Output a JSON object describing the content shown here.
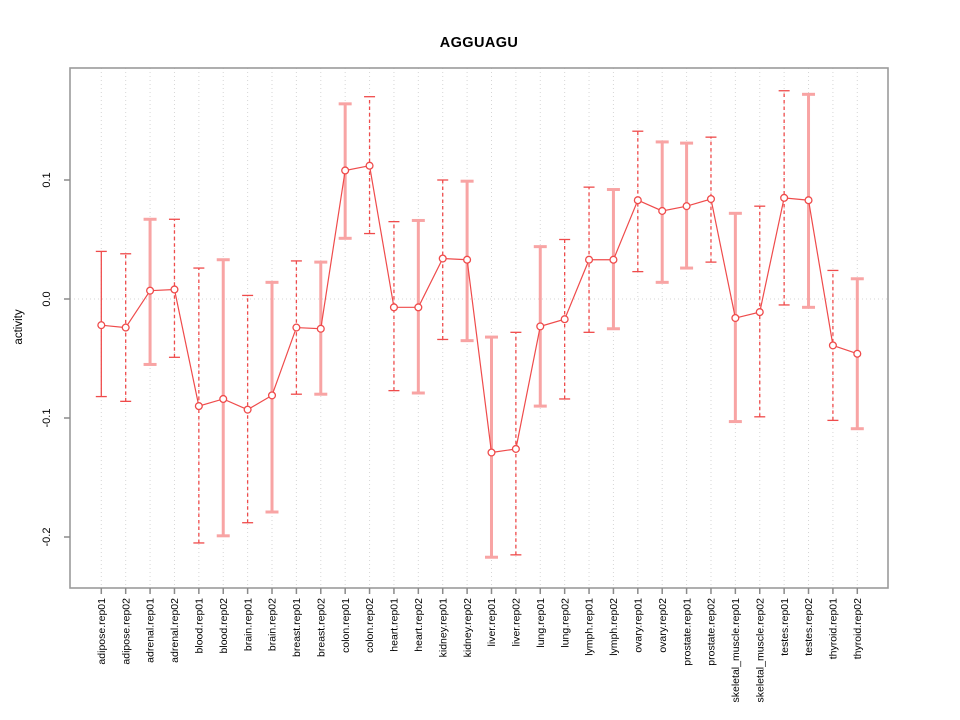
{
  "figure": {
    "background": "#ffffff"
  },
  "chart_data": {
    "type": "line",
    "subtype": "points-with-error-bars",
    "title": "AGGUAGU",
    "xlabel": "",
    "ylabel": "activity",
    "legend": "none",
    "grid": "vertical-dotted-per-category-plus-dotted-zero-line",
    "point_marker": "open-circle",
    "ylim": [
      -0.243,
      0.193
    ],
    "yticks": [
      0.1,
      0.0,
      -0.1,
      -0.2
    ],
    "ytick_labels": [
      "0.1",
      "0.0",
      "-0.1",
      "-0.2"
    ],
    "colors": {
      "line": "#ef4b4b",
      "marker": "#ef4b4b",
      "error_bar_dashed": "#ef4b4b",
      "error_bar_solid": "#f8a4a4",
      "grid": "#d6d6d6",
      "frame": "#9b9b9b",
      "tick": "#8a8a8a",
      "text": "#000000"
    },
    "categories": [
      "adipose.rep01",
      "adipose.rep02",
      "adrenal.rep01",
      "adrenal.rep02",
      "blood.rep01",
      "blood.rep02",
      "brain.rep01",
      "brain.rep02",
      "breast.rep01",
      "breast.rep02",
      "colon.rep01",
      "colon.rep02",
      "heart.rep01",
      "heart.rep02",
      "kidney.rep01",
      "kidney.rep02",
      "liver.rep01",
      "liver.rep02",
      "lung.rep01",
      "lung.rep02",
      "lymph.rep01",
      "lymph.rep02",
      "ovary.rep01",
      "ovary.rep02",
      "prostate.rep01",
      "prostate.rep02",
      "skeletal_muscle.rep01",
      "skeletal_muscle.rep02",
      "testes.rep01",
      "testes.rep02",
      "thyroid.rep01",
      "thyroid.rep02"
    ],
    "points": [
      {
        "label": "adipose.rep01",
        "value": -0.022,
        "lo": -0.082,
        "hi": 0.04,
        "bar_style": "solid-red"
      },
      {
        "label": "adipose.rep02",
        "value": -0.024,
        "lo": -0.086,
        "hi": 0.038,
        "bar_style": "dashed-red"
      },
      {
        "label": "adrenal.rep01",
        "value": 0.007,
        "lo": -0.055,
        "hi": 0.067,
        "bar_style": "solid-pink"
      },
      {
        "label": "adrenal.rep02",
        "value": 0.008,
        "lo": -0.049,
        "hi": 0.067,
        "bar_style": "dashed-red"
      },
      {
        "label": "blood.rep01",
        "value": -0.09,
        "lo": -0.205,
        "hi": 0.026,
        "bar_style": "dashed-red"
      },
      {
        "label": "blood.rep02",
        "value": -0.084,
        "lo": -0.199,
        "hi": 0.033,
        "bar_style": "solid-pink"
      },
      {
        "label": "brain.rep01",
        "value": -0.093,
        "lo": -0.188,
        "hi": 0.003,
        "bar_style": "dashed-red"
      },
      {
        "label": "brain.rep02",
        "value": -0.081,
        "lo": -0.179,
        "hi": 0.014,
        "bar_style": "solid-pink"
      },
      {
        "label": "breast.rep01",
        "value": -0.024,
        "lo": -0.08,
        "hi": 0.032,
        "bar_style": "dashed-red"
      },
      {
        "label": "breast.rep02",
        "value": -0.025,
        "lo": -0.08,
        "hi": 0.031,
        "bar_style": "solid-pink"
      },
      {
        "label": "colon.rep01",
        "value": 0.108,
        "lo": 0.051,
        "hi": 0.164,
        "bar_style": "solid-pink"
      },
      {
        "label": "colon.rep02",
        "value": 0.112,
        "lo": 0.055,
        "hi": 0.17,
        "bar_style": "dashed-red"
      },
      {
        "label": "heart.rep01",
        "value": -0.007,
        "lo": -0.077,
        "hi": 0.065,
        "bar_style": "dashed-red"
      },
      {
        "label": "heart.rep02",
        "value": -0.007,
        "lo": -0.079,
        "hi": 0.066,
        "bar_style": "solid-pink"
      },
      {
        "label": "kidney.rep01",
        "value": 0.034,
        "lo": -0.034,
        "hi": 0.1,
        "bar_style": "dashed-red"
      },
      {
        "label": "kidney.rep02",
        "value": 0.033,
        "lo": -0.035,
        "hi": 0.099,
        "bar_style": "solid-pink"
      },
      {
        "label": "liver.rep01",
        "value": -0.129,
        "lo": -0.217,
        "hi": -0.032,
        "bar_style": "solid-pink"
      },
      {
        "label": "liver.rep02",
        "value": -0.126,
        "lo": -0.215,
        "hi": -0.028,
        "bar_style": "dashed-red"
      },
      {
        "label": "lung.rep01",
        "value": -0.023,
        "lo": -0.09,
        "hi": 0.044,
        "bar_style": "solid-pink"
      },
      {
        "label": "lung.rep02",
        "value": -0.017,
        "lo": -0.084,
        "hi": 0.05,
        "bar_style": "dashed-red"
      },
      {
        "label": "lymph.rep01",
        "value": 0.033,
        "lo": -0.028,
        "hi": 0.094,
        "bar_style": "dashed-red"
      },
      {
        "label": "lymph.rep02",
        "value": 0.033,
        "lo": -0.025,
        "hi": 0.092,
        "bar_style": "solid-pink"
      },
      {
        "label": "ovary.rep01",
        "value": 0.083,
        "lo": 0.023,
        "hi": 0.141,
        "bar_style": "dashed-red"
      },
      {
        "label": "ovary.rep02",
        "value": 0.074,
        "lo": 0.014,
        "hi": 0.132,
        "bar_style": "solid-pink"
      },
      {
        "label": "prostate.rep01",
        "value": 0.078,
        "lo": 0.026,
        "hi": 0.131,
        "bar_style": "solid-pink"
      },
      {
        "label": "prostate.rep02",
        "value": 0.084,
        "lo": 0.031,
        "hi": 0.136,
        "bar_style": "dashed-red"
      },
      {
        "label": "skeletal_muscle.rep01",
        "value": -0.016,
        "lo": -0.103,
        "hi": 0.072,
        "bar_style": "solid-pink"
      },
      {
        "label": "skeletal_muscle.rep02",
        "value": -0.011,
        "lo": -0.099,
        "hi": 0.078,
        "bar_style": "dashed-red"
      },
      {
        "label": "testes.rep01",
        "value": 0.085,
        "lo": -0.005,
        "hi": 0.175,
        "bar_style": "dashed-red"
      },
      {
        "label": "testes.rep02",
        "value": 0.083,
        "lo": -0.007,
        "hi": 0.172,
        "bar_style": "solid-pink"
      },
      {
        "label": "thyroid.rep01",
        "value": -0.039,
        "lo": -0.102,
        "hi": 0.024,
        "bar_style": "dashed-red"
      },
      {
        "label": "thyroid.rep02",
        "value": -0.046,
        "lo": -0.109,
        "hi": 0.017,
        "bar_style": "solid-pink"
      }
    ]
  }
}
